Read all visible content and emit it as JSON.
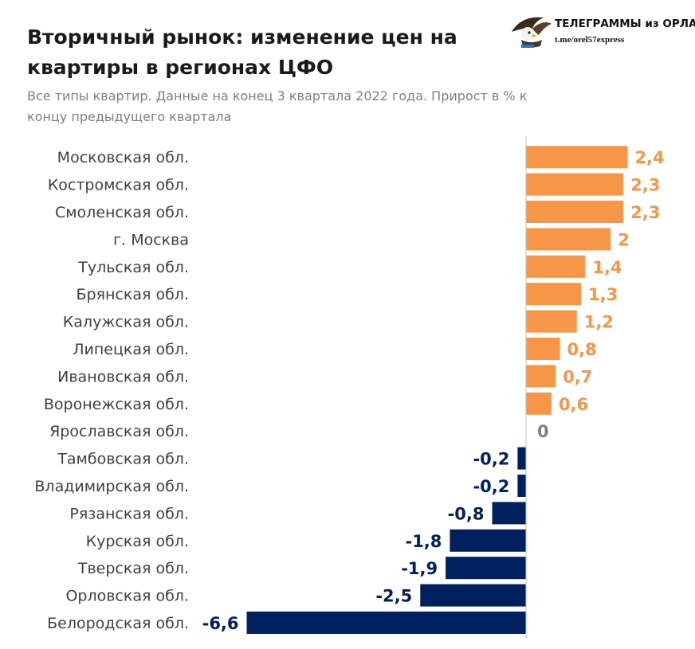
{
  "header": {
    "title_line1": "Вторичный рынок: изменение цен на",
    "title_line2": "квартиры в регионах ЦФО",
    "subtitle_line1": "Все типы квартир. Данные на конец 3 квартала 2022 года. Прирост в % к",
    "subtitle_line2": "концу предыдущего квартала"
  },
  "brand": {
    "name": "ТЕЛЕГРАММЫ из ОРЛА",
    "link": "t.me/orel57express",
    "logo_icon": "eagle-icon"
  },
  "colors": {
    "positive": "#f79646",
    "negative": "#002060",
    "zero": "#808080",
    "axis": "#bfbfbf"
  },
  "chart_data": {
    "type": "bar",
    "orientation": "horizontal",
    "categories": [
      "Московская обл.",
      "Костромская обл.",
      "Смоленская обл.",
      "г. Москва",
      "Тульская обл.",
      "Брянская обл.",
      "Калужская обл.",
      "Липецкая обл.",
      "Ивановская обл.",
      "Воронежская обл.",
      "Ярославская обл.",
      "Тамбовская обл.",
      "Владимирская обл.",
      "Рязанская обл.",
      "Курская обл.",
      "Тверская обл.",
      "Орловская обл.",
      "Белородская обл."
    ],
    "values": [
      2.4,
      2.3,
      2.3,
      2,
      1.4,
      1.3,
      1.2,
      0.8,
      0.7,
      0.6,
      0,
      -0.2,
      -0.2,
      -0.8,
      -1.8,
      -1.9,
      -2.5,
      -6.6
    ],
    "value_labels": [
      "2,4",
      "2,3",
      "2,3",
      "2",
      "1,4",
      "1,3",
      "1,2",
      "0,8",
      "0,7",
      "0,6",
      "0",
      "-0,2",
      "-0,2",
      "-0,8",
      "-1,8",
      "-1,9",
      "-2,5",
      "-6,6"
    ],
    "xlim": [
      -6.6,
      2.4
    ],
    "grid": false,
    "legend": "none"
  }
}
